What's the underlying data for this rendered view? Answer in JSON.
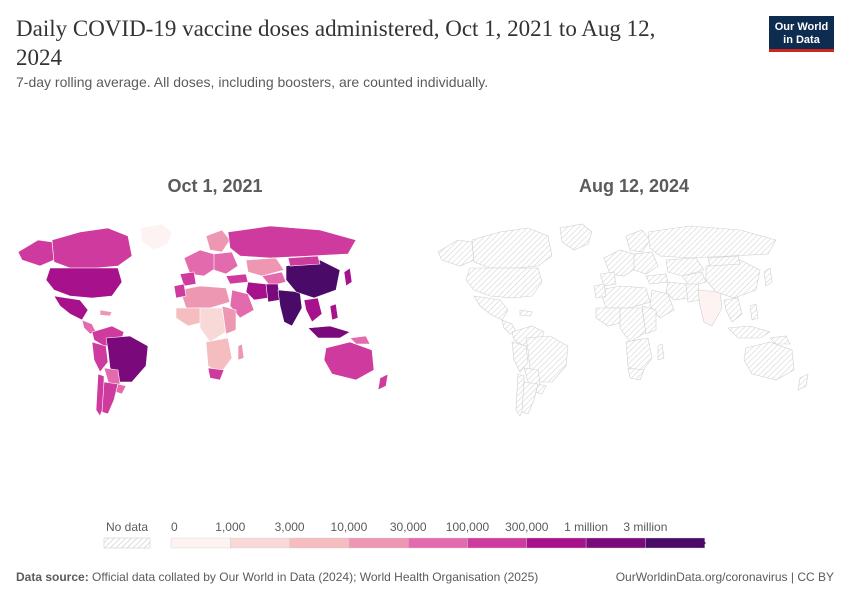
{
  "header": {
    "title": "Daily COVID-19 vaccine doses administered, Oct 1, 2021 to Aug 12, 2024",
    "subtitle": "7-day rolling average. All doses, including boosters, are counted individually.",
    "logo_line1": "Our World",
    "logo_line2": "in Data"
  },
  "maps": {
    "left_label": "Oct 1, 2021",
    "right_label": "Aug 12, 2024"
  },
  "legend": {
    "no_data_label": "No data",
    "bins": [
      {
        "label": "0",
        "color": "#fdf3f2"
      },
      {
        "label": "1,000",
        "color": "#f9d9d8"
      },
      {
        "label": "3,000",
        "color": "#f5bdbf"
      },
      {
        "label": "10,000",
        "color": "#ee97b3"
      },
      {
        "label": "30,000",
        "color": "#e46aae"
      },
      {
        "label": "100,000",
        "color": "#cf3a9e"
      },
      {
        "label": "300,000",
        "color": "#a8118c"
      },
      {
        "label": "1 million",
        "color": "#7a0a7c"
      },
      {
        "label": "3 million",
        "color": "#4a0a68"
      }
    ]
  },
  "footer": {
    "source_label": "Data source:",
    "source_text": "Official data collated by Our World in Data (2024); World Health Organisation (2025)",
    "url": "OurWorldinData.org/coronavirus | CC BY"
  },
  "colors": {
    "no_data": "#e6e6e6",
    "border": "#ffffff",
    "accent": "#0d2c4f"
  }
}
